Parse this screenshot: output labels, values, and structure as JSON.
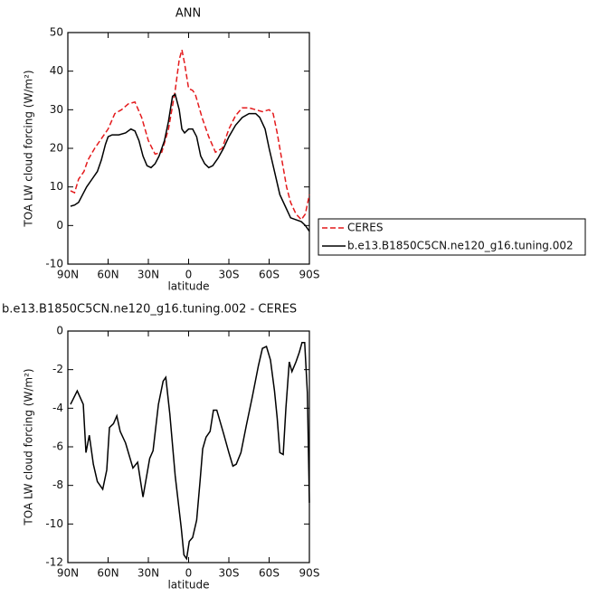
{
  "chart_data": [
    {
      "type": "line",
      "title": "ANN",
      "xlabel": "latitude",
      "ylabel": "TOA LW cloud forcing (W/m²)",
      "xlim": [
        90,
        -90
      ],
      "xticks": [
        {
          "value": 90,
          "label": "90N"
        },
        {
          "value": 60,
          "label": "60N"
        },
        {
          "value": 30,
          "label": "30N"
        },
        0,
        {
          "value": -30,
          "label": "30S"
        },
        {
          "value": -60,
          "label": "60S"
        },
        {
          "value": -90,
          "label": "90S"
        }
      ],
      "ylim": [
        -10,
        50
      ],
      "yticks": [
        -10,
        0,
        10,
        20,
        30,
        40,
        50
      ],
      "legend": "right",
      "series": [
        {
          "name": "CERES",
          "color": "#e41a1c",
          "dash": true,
          "x": [
            88,
            85,
            82,
            78,
            75,
            70,
            65,
            60,
            55,
            50,
            45,
            40,
            35,
            30,
            25,
            20,
            15,
            10,
            7,
            5,
            3,
            0,
            -3,
            -5,
            -10,
            -15,
            -20,
            -25,
            -30,
            -35,
            -40,
            -45,
            -50,
            -55,
            -60,
            -63,
            -66,
            -70,
            -73,
            -76,
            -80,
            -84,
            -87,
            -90
          ],
          "values": [
            9,
            8.5,
            12,
            14,
            17,
            20,
            22.5,
            25,
            29,
            30,
            31.5,
            32,
            28,
            22,
            18.5,
            19,
            25,
            35,
            43,
            45.5,
            42,
            35.5,
            35,
            34,
            28,
            23,
            19,
            20,
            25,
            28.5,
            30.5,
            30.5,
            30,
            29.5,
            30,
            29,
            24,
            16,
            10,
            6,
            3,
            1.5,
            3,
            8
          ]
        },
        {
          "name": "b.e13.B1850C5CN.ne120_g16.tuning.002",
          "color": "#000000",
          "dash": false,
          "x": [
            88,
            85,
            82,
            79,
            76,
            72,
            68,
            65,
            62,
            60,
            57,
            52,
            47,
            43,
            40,
            37,
            34,
            31,
            28,
            25,
            22,
            18,
            15,
            12,
            10,
            7,
            5,
            3,
            0,
            -3,
            -6,
            -9,
            -12,
            -15,
            -18,
            -22,
            -26,
            -30,
            -35,
            -40,
            -45,
            -50,
            -53,
            -57,
            -60,
            -64,
            -68,
            -72,
            -76,
            -80,
            -84,
            -87,
            -90
          ],
          "values": [
            5,
            5.3,
            6,
            8,
            10,
            12,
            14,
            17,
            21,
            23,
            23.5,
            23.5,
            24,
            25,
            24.5,
            22,
            18,
            15.5,
            15,
            16,
            18,
            22,
            27,
            33.5,
            34,
            30,
            25,
            24,
            25,
            25,
            23,
            18,
            16,
            15,
            15.5,
            17.5,
            20,
            23,
            26,
            28,
            29,
            29,
            28,
            25,
            20,
            14,
            8,
            5,
            2,
            1.5,
            1,
            0,
            -1.5
          ]
        }
      ]
    },
    {
      "type": "line",
      "title": "b.e13.B1850C5CN.ne120_g16.tuning.002 - CERES",
      "xlabel": "latitude",
      "ylabel": "TOA LW cloud forcing (W/m²)",
      "xlim": [
        90,
        -90
      ],
      "xticks": [
        {
          "value": 90,
          "label": "90N"
        },
        {
          "value": 60,
          "label": "60N"
        },
        {
          "value": 30,
          "label": "30N"
        },
        0,
        {
          "value": -30,
          "label": "30S"
        },
        {
          "value": -60,
          "label": "60S"
        },
        {
          "value": -90,
          "label": "90S"
        }
      ],
      "ylim": [
        -12,
        0
      ],
      "yticks": [
        -12,
        -10,
        -8,
        -6,
        -4,
        -2,
        0
      ],
      "series": [
        {
          "color": "#000000",
          "dash": false,
          "x": [
            88,
            83,
            78.5,
            76.5,
            74,
            71,
            68,
            64,
            61,
            59,
            56,
            53.5,
            51,
            47,
            41.5,
            38,
            34,
            29,
            26.5,
            22.5,
            19,
            17,
            14,
            10,
            5.5,
            3.5,
            1.5,
            -0.5,
            -3,
            -6,
            -8.5,
            -10.5,
            -13,
            -16,
            -18.5,
            -21,
            -26,
            -30,
            -33,
            -35.5,
            -39,
            -43,
            -47.5,
            -52,
            -55,
            -58,
            -61,
            -64,
            -66,
            -68,
            -70.5,
            -72.5,
            -75,
            -77,
            -80,
            -82.5,
            -84.5,
            -86.5,
            -88.5,
            -90
          ],
          "values": [
            -3.8,
            -3.1,
            -3.8,
            -6.3,
            -5.4,
            -6.9,
            -7.8,
            -8.2,
            -7.2,
            -5.0,
            -4.8,
            -4.4,
            -5.2,
            -5.8,
            -7.1,
            -6.8,
            -8.6,
            -6.6,
            -6.2,
            -3.8,
            -2.6,
            -2.4,
            -4.3,
            -7.5,
            -10.2,
            -11.6,
            -11.8,
            -10.9,
            -10.7,
            -9.8,
            -7.8,
            -6.1,
            -5.5,
            -5.2,
            -4.1,
            -4.1,
            -5.3,
            -6.3,
            -7.0,
            -6.9,
            -6.3,
            -4.9,
            -3.4,
            -1.8,
            -0.9,
            -0.8,
            -1.5,
            -3.1,
            -4.5,
            -6.3,
            -6.4,
            -4.0,
            -1.6,
            -2.1,
            -1.6,
            -1.1,
            -0.6,
            -0.6,
            -3.2,
            -8.9
          ]
        }
      ]
    }
  ]
}
